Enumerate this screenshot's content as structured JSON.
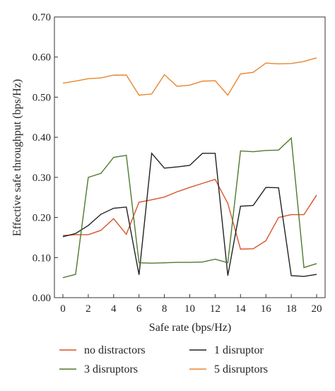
{
  "chart_data": {
    "type": "line",
    "xlabel": "Safe rate (bps/Hz)",
    "ylabel": "Effective safe throughput (bps/Hz)",
    "xlim": [
      0,
      20
    ],
    "ylim": [
      0,
      0.7
    ],
    "xticks": [
      "0",
      "2",
      "4",
      "6",
      "8",
      "10",
      "12",
      "14",
      "16",
      "18",
      "20"
    ],
    "yticks": [
      "0.00",
      "0.10",
      "0.20",
      "0.30",
      "0.40",
      "0.50",
      "0.60",
      "0.70"
    ],
    "grid": false,
    "legend_position": "bottom",
    "x": [
      0,
      1,
      2,
      3,
      4,
      5,
      6,
      7,
      8,
      9,
      10,
      11,
      12,
      13,
      14,
      15,
      16,
      17,
      18,
      19,
      20
    ],
    "series": [
      {
        "name": "no distractors",
        "color": "#d9522b",
        "values": [
          0.155,
          0.157,
          0.157,
          0.168,
          0.197,
          0.158,
          0.238,
          0.244,
          0.251,
          0.264,
          0.275,
          0.285,
          0.295,
          0.235,
          0.121,
          0.122,
          0.142,
          0.2,
          0.207,
          0.207,
          0.256
        ]
      },
      {
        "name": "1 disruptor",
        "color": "#222222",
        "values": [
          0.152,
          0.16,
          0.18,
          0.208,
          0.223,
          0.226,
          0.057,
          0.36,
          0.323,
          0.326,
          0.33,
          0.36,
          0.36,
          0.055,
          0.228,
          0.23,
          0.275,
          0.274,
          0.055,
          0.053,
          0.058
        ]
      },
      {
        "name": "3 disruptors",
        "color": "#4e7a2c",
        "values": [
          0.05,
          0.058,
          0.3,
          0.31,
          0.35,
          0.355,
          0.087,
          0.086,
          0.087,
          0.088,
          0.088,
          0.089,
          0.096,
          0.087,
          0.366,
          0.364,
          0.367,
          0.368,
          0.398,
          0.075,
          0.085
        ]
      },
      {
        "name": "5 disruptors",
        "color": "#e8852f",
        "values": [
          0.535,
          0.54,
          0.546,
          0.548,
          0.555,
          0.555,
          0.505,
          0.508,
          0.556,
          0.527,
          0.53,
          0.54,
          0.541,
          0.505,
          0.558,
          0.562,
          0.585,
          0.583,
          0.584,
          0.589,
          0.598
        ]
      }
    ]
  }
}
